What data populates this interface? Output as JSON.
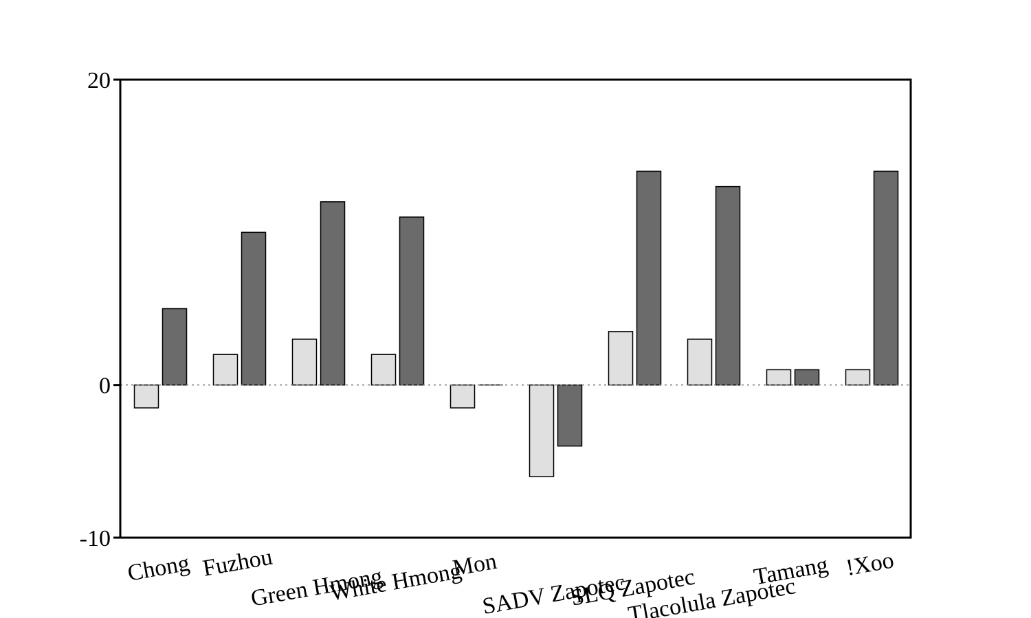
{
  "chart_data": {
    "type": "bar",
    "title": "",
    "xlabel": "",
    "ylabel": "",
    "ylim": [
      -10,
      20
    ],
    "yticks": [
      "-10",
      "0",
      "20"
    ],
    "grid": false,
    "zero_line": "dotted",
    "categories": [
      "Chong",
      "Fuzhou",
      "Green Hmong",
      "White Hmong",
      "Mon",
      "SADV Zapotec",
      "SLQ Zapotec",
      "Tlacolula Zapotec",
      "Tamang",
      "!Xoo"
    ],
    "series": [
      {
        "color": "#e0e0e0",
        "values": [
          -1.5,
          2,
          3,
          2,
          -1.5,
          -6,
          3.5,
          3,
          1,
          1
        ]
      },
      {
        "color": "#6b6b6b",
        "values": [
          5,
          10,
          12,
          11,
          0,
          -4,
          14,
          13,
          1,
          14
        ]
      }
    ]
  }
}
